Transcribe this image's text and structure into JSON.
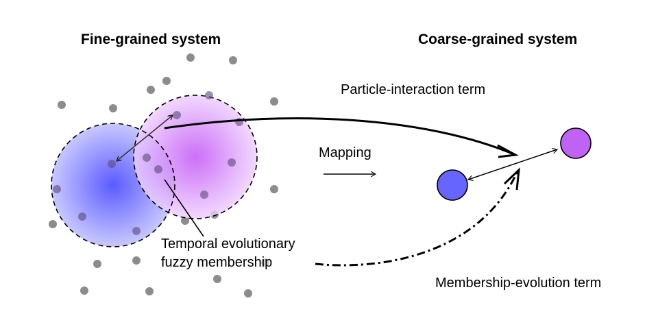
{
  "titles": {
    "fine": "Fine-grained system",
    "coarse": "Coarse-grained system"
  },
  "labels": {
    "particle_interaction": "Particle-interaction term",
    "mapping": "Mapping",
    "membership_line1": "Temporal evolutionary",
    "membership_line2": "fuzzy membership",
    "membership_evolution": "Membership-evolution term"
  },
  "colors": {
    "blue": "#6666ff",
    "purple": "#c062f4",
    "particle": "#8c8c8c"
  }
}
